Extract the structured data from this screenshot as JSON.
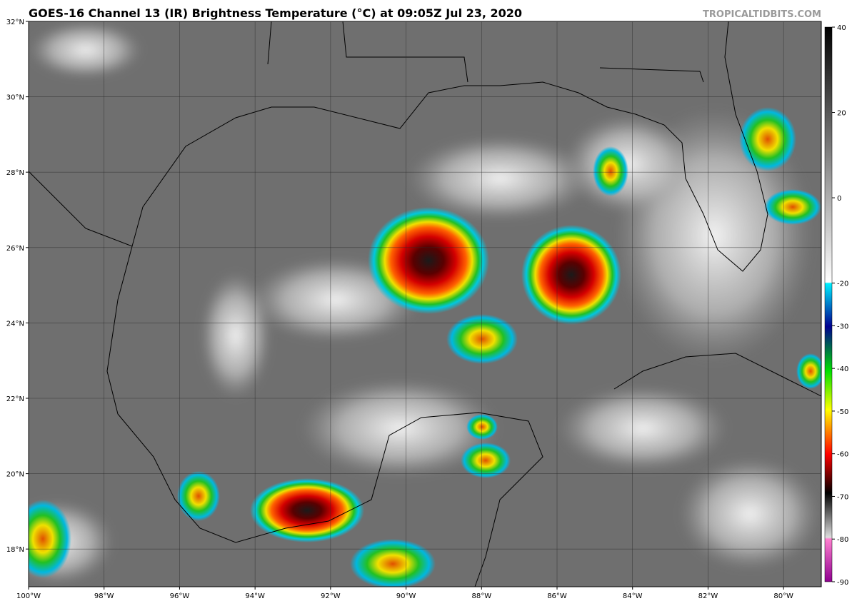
{
  "header": {
    "title": "GOES-16 Channel 13 (IR) Brightness Temperature (°C) at 09:05Z Jul 23, 2020",
    "watermark": "TROPICALTIDBITS.COM"
  },
  "map": {
    "xlim": [
      -100,
      -79
    ],
    "ylim": [
      17,
      32
    ],
    "xticks": [
      {
        "value": -100,
        "label": "100°W"
      },
      {
        "value": -98,
        "label": "98°W"
      },
      {
        "value": -96,
        "label": "96°W"
      },
      {
        "value": -94,
        "label": "94°W"
      },
      {
        "value": -92,
        "label": "92°W"
      },
      {
        "value": -90,
        "label": "90°W"
      },
      {
        "value": -88,
        "label": "88°W"
      },
      {
        "value": -86,
        "label": "86°W"
      },
      {
        "value": -84,
        "label": "84°W"
      },
      {
        "value": -82,
        "label": "82°W"
      },
      {
        "value": -80,
        "label": "80°W"
      }
    ],
    "yticks": [
      {
        "value": 18,
        "label": "18°N"
      },
      {
        "value": 20,
        "label": "20°N"
      },
      {
        "value": 22,
        "label": "22°N"
      },
      {
        "value": 24,
        "label": "24°N"
      },
      {
        "value": 26,
        "label": "26°N"
      },
      {
        "value": 28,
        "label": "28°N"
      },
      {
        "value": 30,
        "label": "30°N"
      },
      {
        "value": 32,
        "label": "32°N"
      }
    ]
  },
  "colorbar": {
    "lim": [
      -90,
      40
    ],
    "ticks": [
      40,
      20,
      0,
      -20,
      -30,
      -40,
      -50,
      -60,
      -70,
      -80,
      -90
    ]
  }
}
